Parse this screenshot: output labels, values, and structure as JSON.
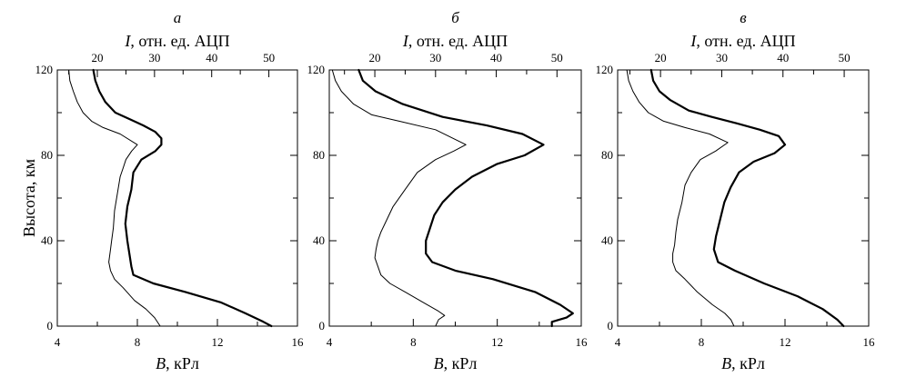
{
  "figure": {
    "ylabel": "Высота, км"
  },
  "chart_data": [
    {
      "type": "line",
      "panel_label": "а",
      "top_axis_label": {
        "symbol": "I",
        "rest": ", отн. ед. АЦП"
      },
      "bottom_axis_label": {
        "symbol": "B",
        "rest": ", кРл"
      },
      "xlim_bottom": [
        4,
        16
      ],
      "xticks_bottom": [
        "4",
        "8",
        "12",
        "16"
      ],
      "xlim_top": [
        13,
        55
      ],
      "xticks_top": [
        "20",
        "30",
        "40",
        "50"
      ],
      "ylim": [
        0,
        120
      ],
      "yticks": [
        "0",
        "40",
        "80",
        "120"
      ],
      "series": [
        {
          "style": "thin",
          "axis": "top",
          "x": [
            15,
            15.2,
            15.8,
            16.5,
            17.5,
            19,
            21,
            24,
            27,
            26,
            25,
            24.5,
            24,
            23.5,
            23,
            22.8,
            22.5,
            22.3,
            22,
            22.3,
            23,
            24.5,
            26.5,
            28.5,
            30,
            31
          ],
          "y": [
            120,
            115,
            110,
            105,
            100,
            96,
            93,
            90,
            85,
            82,
            78,
            74,
            70,
            62,
            54,
            46,
            40,
            36,
            30,
            26,
            22,
            18,
            12,
            8,
            4,
            0
          ]
        },
        {
          "style": "thick",
          "axis": "bottom",
          "x": [
            5.8,
            5.9,
            6.1,
            6.4,
            6.9,
            7.6,
            8.3,
            8.9,
            9.2,
            9.2,
            8.9,
            8.2,
            7.8,
            7.7,
            7.5,
            7.4,
            7.5,
            7.6,
            7.7,
            7.8,
            8.8,
            10.4,
            12.2,
            13.4,
            14.3,
            14.7
          ],
          "y": [
            120,
            115,
            110,
            105,
            100,
            97,
            94,
            91,
            88,
            85,
            82,
            78,
            72,
            64,
            56,
            48,
            40,
            34,
            28,
            24,
            20,
            16,
            11,
            6,
            2,
            0
          ]
        }
      ]
    },
    {
      "type": "line",
      "panel_label": "б",
      "top_axis_label": {
        "symbol": "I",
        "rest": ", отн. ед. АЦП"
      },
      "bottom_axis_label": {
        "symbol": "B",
        "rest": ", кРл"
      },
      "xlim_bottom": [
        4,
        16
      ],
      "xticks_bottom": [
        "4",
        "8",
        "12",
        "16"
      ],
      "xlim_top": [
        12.5,
        54
      ],
      "xticks_top": [
        "20",
        "30",
        "40",
        "50"
      ],
      "ylim": [
        0,
        120
      ],
      "yticks": [
        "0",
        "40",
        "80",
        "120"
      ],
      "series": [
        {
          "style": "thin",
          "axis": "top",
          "x": [
            13,
            13.5,
            14.5,
            16.5,
            19.5,
            24,
            30,
            35,
            33,
            30,
            27,
            25,
            23,
            22,
            21,
            20.5,
            20.2,
            20,
            20.5,
            21,
            22.5,
            25,
            28,
            30.5,
            31.5,
            30.5,
            30
          ],
          "y": [
            120,
            115,
            110,
            104,
            99,
            96,
            92,
            85,
            82,
            78,
            72,
            64,
            56,
            50,
            44,
            40,
            36,
            32,
            28,
            24,
            20,
            16,
            11,
            7,
            5,
            3,
            0
          ]
        },
        {
          "style": "thick",
          "axis": "bottom",
          "x": [
            5.4,
            5.6,
            6.2,
            7.5,
            9.4,
            11.5,
            13.2,
            14.2,
            13.3,
            12.0,
            10.8,
            10.0,
            9.4,
            9.0,
            8.8,
            8.6,
            8.6,
            8.9,
            10.0,
            11.8,
            13.8,
            15.0,
            15.6,
            15.3,
            14.6,
            14.6
          ],
          "y": [
            120,
            115,
            110,
            104,
            98,
            94,
            90,
            85,
            80,
            76,
            70,
            64,
            58,
            52,
            46,
            40,
            34,
            30,
            26,
            22,
            16,
            10,
            6,
            4,
            2,
            0
          ]
        }
      ]
    },
    {
      "type": "line",
      "panel_label": "в",
      "top_axis_label": {
        "symbol": "I",
        "rest": ", отн. ед. АЦП"
      },
      "bottom_axis_label": {
        "symbol": "B",
        "rest": ", кРл"
      },
      "xlim_bottom": [
        4,
        16
      ],
      "xticks_bottom": [
        "4",
        "8",
        "12",
        "16"
      ],
      "xlim_top": [
        13,
        54
      ],
      "xticks_top": [
        "20",
        "30",
        "40",
        "50"
      ],
      "ylim": [
        0,
        120
      ],
      "yticks": [
        "0",
        "40",
        "80",
        "120"
      ],
      "series": [
        {
          "style": "thin",
          "axis": "top",
          "x": [
            14.5,
            14.8,
            15.5,
            16.5,
            18,
            20.5,
            24,
            28,
            31,
            29,
            26.5,
            25,
            24,
            23.5,
            22.8,
            22.5,
            22.3,
            22,
            22,
            22.5,
            24,
            26,
            28.5,
            30.5,
            31.5,
            32
          ],
          "y": [
            120,
            115,
            110,
            105,
            100,
            96,
            93,
            90,
            86,
            82,
            78,
            72,
            66,
            58,
            50,
            44,
            38,
            34,
            30,
            26,
            22,
            16,
            10,
            6,
            3,
            0
          ]
        },
        {
          "style": "thick",
          "axis": "bottom",
          "x": [
            5.6,
            5.7,
            6.0,
            6.5,
            7.4,
            8.5,
            9.7,
            10.8,
            11.7,
            12.0,
            11.5,
            10.5,
            9.8,
            9.4,
            9.1,
            8.9,
            8.7,
            8.6,
            8.8,
            9.6,
            11.0,
            12.6,
            13.8,
            14.5,
            14.8
          ],
          "y": [
            120,
            115,
            110,
            106,
            101,
            98,
            95,
            92,
            89,
            85,
            81,
            77,
            72,
            65,
            58,
            50,
            42,
            36,
            30,
            26,
            20,
            14,
            8,
            3,
            0
          ]
        }
      ]
    }
  ]
}
